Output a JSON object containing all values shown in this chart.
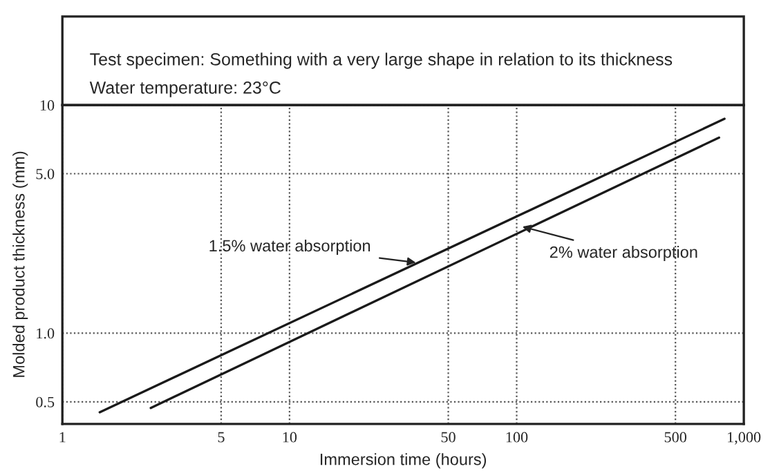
{
  "chart_data": {
    "type": "line",
    "title": "Test specimen: Something with a very large shape in relation to its thickness",
    "subtitle": "Water temperature: 23°C",
    "xlabel": "Immersion time (hours)",
    "ylabel": "Molded product thickness (mm)",
    "log": "xy",
    "xlim": [
      1,
      1000
    ],
    "xticks": [
      1,
      5,
      10,
      50,
      100,
      500,
      {
        "value": 1000,
        "label": "1,000"
      }
    ],
    "ylim": [
      0.4,
      10
    ],
    "yticks": [
      0.5,
      {
        "value": 1.0,
        "label": "1.0"
      },
      {
        "value": 5.0,
        "label": "5.0"
      },
      10
    ],
    "grid": true,
    "series": [
      {
        "color": "#1a1a1a",
        "x": [
          1.46,
          822
        ],
        "values": [
          0.45,
          8.7
        ]
      },
      {
        "color": "#1a1a1a",
        "x": [
          2.45,
          778
        ],
        "values": [
          0.47,
          7.2
        ]
      }
    ],
    "annotations": [
      {
        "text": "1.5% water absorption",
        "x": 36,
        "y": 2.04
      },
      {
        "text": "2% water absorption",
        "x": 106,
        "y": 2.93
      }
    ]
  }
}
